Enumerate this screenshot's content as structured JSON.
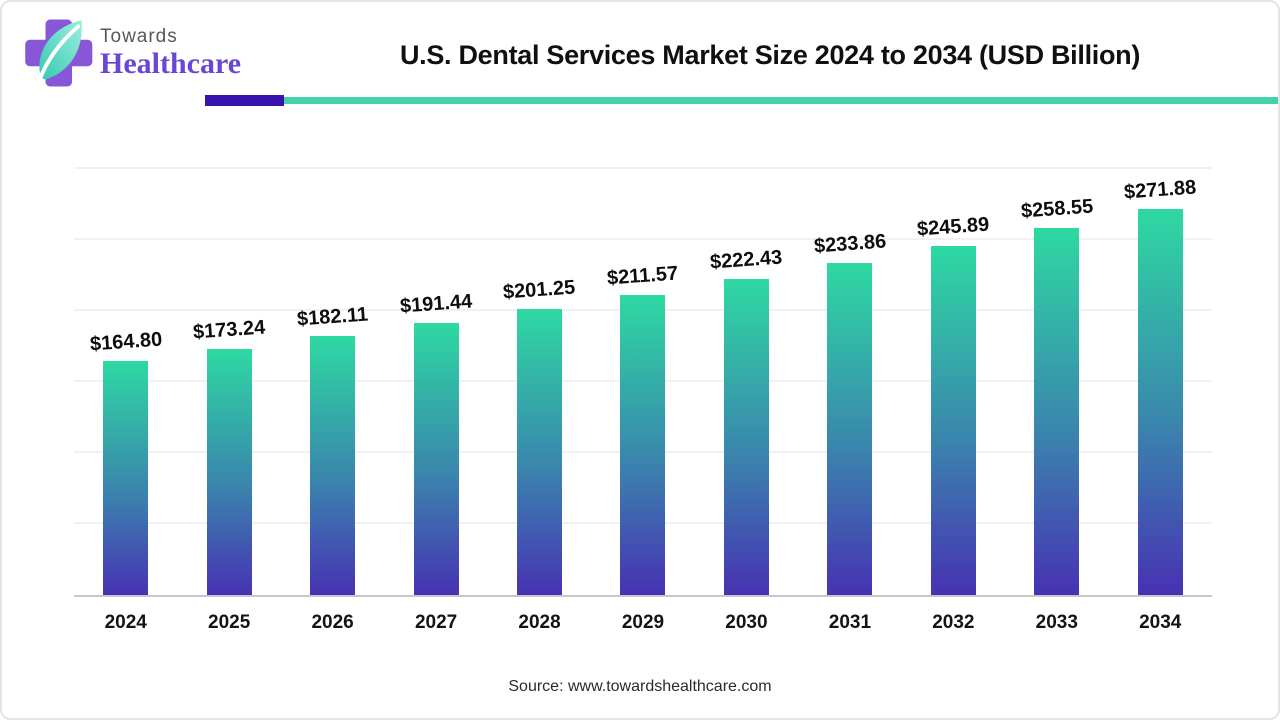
{
  "header": {
    "logo": {
      "name_top": "Towards",
      "name_bottom": "Healthcare",
      "cross_color": "#8757d8",
      "leaf_color_dark": "#35c9b0",
      "leaf_color_light": "#9ceede"
    },
    "title": "U.S. Dental Services Market Size 2024 to 2034 (USD Billion)",
    "accent_bar": {
      "purple": "#3a12ae",
      "teal": "#44d1ab"
    }
  },
  "chart_data": {
    "type": "bar",
    "title": "U.S. Dental Services Market Size 2024 to 2034 (USD Billion)",
    "unit": "USD Billion",
    "categories": [
      "2024",
      "2025",
      "2026",
      "2027",
      "2028",
      "2029",
      "2030",
      "2031",
      "2032",
      "2033",
      "2034"
    ],
    "values": [
      164.8,
      173.24,
      182.11,
      191.44,
      201.25,
      211.57,
      222.43,
      233.86,
      245.89,
      258.55,
      271.88
    ],
    "value_labels": [
      "$164.80",
      "$173.24",
      "$182.11",
      "$191.44",
      "$201.25",
      "$211.57",
      "$222.43",
      "$233.86",
      "$245.89",
      "$258.55",
      "$271.88"
    ],
    "xlabel": "",
    "ylabel": "",
    "ylim": [
      0,
      300
    ],
    "gridline_step": 50,
    "grid": "faint horizontal gridlines, no y-axis labels",
    "legend": "none",
    "bar_gradient_top": "#2ed9a2",
    "bar_gradient_mid": "#3a86ad",
    "bar_gradient_bottom": "#4732b3"
  },
  "footer": {
    "source": "Source: www.towardshealthcare.com"
  }
}
